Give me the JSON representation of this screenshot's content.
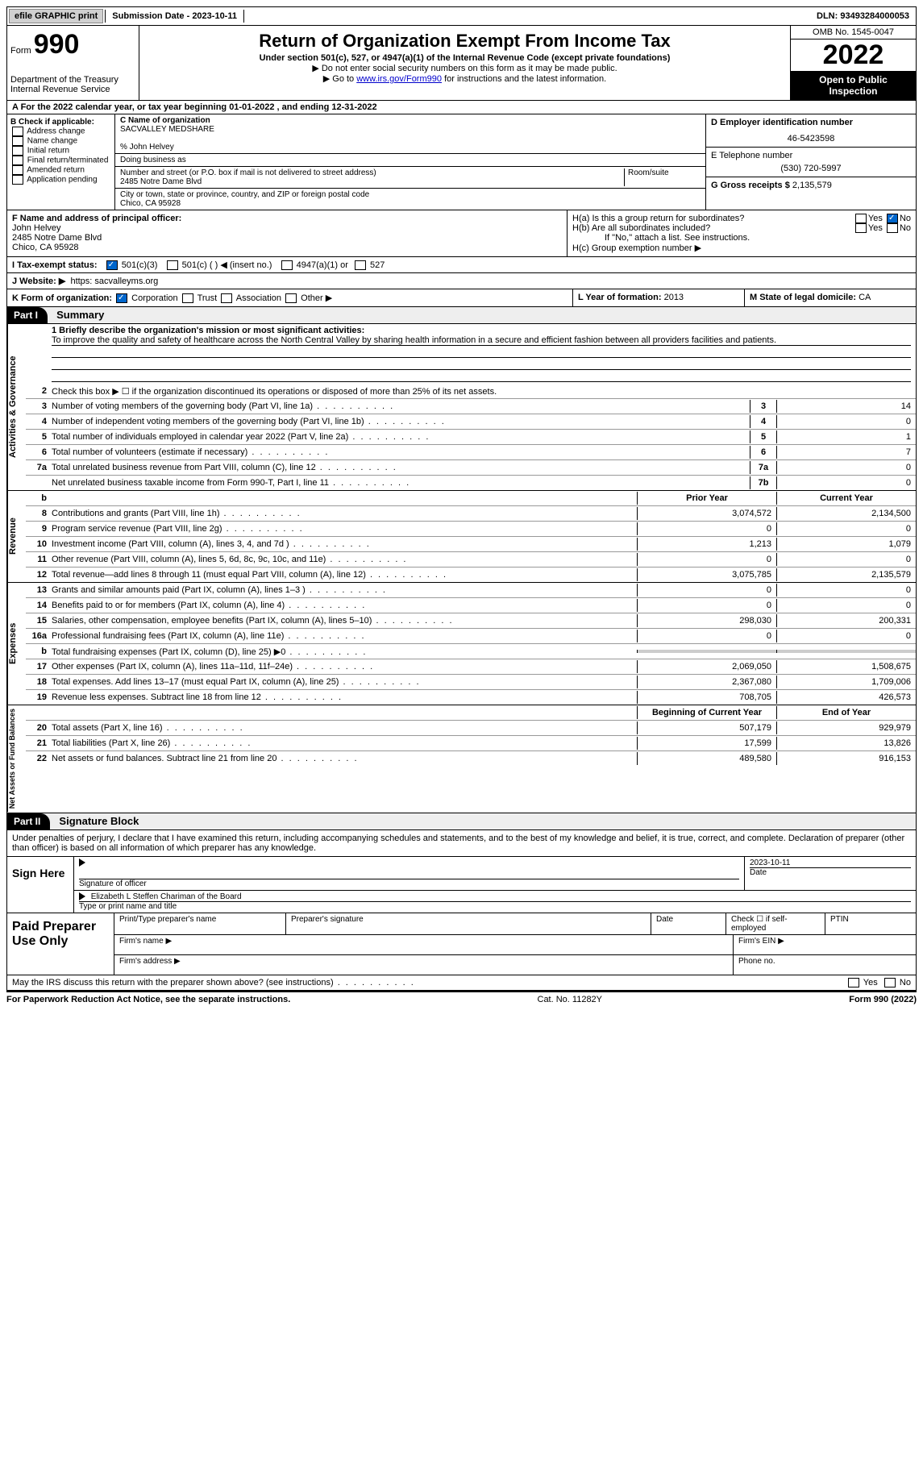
{
  "topbar": {
    "efile": "efile GRAPHIC print",
    "submission": "Submission Date - 2023-10-11",
    "dln": "DLN: 93493284000053"
  },
  "header": {
    "form_label": "Form",
    "form_num": "990",
    "dept": "Department of the Treasury",
    "irs": "Internal Revenue Service",
    "title": "Return of Organization Exempt From Income Tax",
    "sub1": "Under section 501(c), 527, or 4947(a)(1) of the Internal Revenue Code (except private foundations)",
    "sub2": "▶ Do not enter social security numbers on this form as it may be made public.",
    "sub3_pre": "▶ Go to ",
    "sub3_link": "www.irs.gov/Form990",
    "sub3_post": " for instructions and the latest information.",
    "omb": "OMB No. 1545-0047",
    "year": "2022",
    "inspect": "Open to Public Inspection"
  },
  "row_a": "A For the 2022 calendar year, or tax year beginning 01-01-2022    , and ending 12-31-2022",
  "col_b": {
    "hdr": "B Check if applicable:",
    "items": [
      "Address change",
      "Name change",
      "Initial return",
      "Final return/terminated",
      "Amended return",
      "Application pending"
    ]
  },
  "col_c": {
    "name_lbl": "C Name of organization",
    "name": "SACVALLEY MEDSHARE",
    "care": "% John Helvey",
    "dba": "Doing business as",
    "addr_lbl": "Number and street (or P.O. box if mail is not delivered to street address)",
    "addr": "2485 Notre Dame Blvd",
    "room_lbl": "Room/suite",
    "city_lbl": "City or town, state or province, country, and ZIP or foreign postal code",
    "city": "Chico, CA  95928"
  },
  "col_d": {
    "lbl": "D Employer identification number",
    "val": "46-5423598"
  },
  "col_e_phone": {
    "lbl": "E Telephone number",
    "val": "(530) 720-5997"
  },
  "col_g": {
    "lbl": "G Gross receipts $",
    "val": "2,135,579"
  },
  "col_f": {
    "lbl": "F  Name and address of principal officer:",
    "name": "John Helvey",
    "addr1": "2485 Notre Dame Blvd",
    "addr2": "Chico, CA  95928"
  },
  "col_h": {
    "a": "H(a)  Is this a group return for subordinates?",
    "b": "H(b)  Are all subordinates included?",
    "note": "If \"No,\" attach a list. See instructions.",
    "c": "H(c)  Group exemption number ▶"
  },
  "row_i": {
    "lbl": "I   Tax-exempt status:",
    "o1": "501(c)(3)",
    "o2": "501(c) (  ) ◀ (insert no.)",
    "o3": "4947(a)(1) or",
    "o4": "527"
  },
  "row_j": {
    "lbl": "J   Website: ▶",
    "val": "https: sacvalleyms.org"
  },
  "row_k": {
    "lbl": "K Form of organization:",
    "o1": "Corporation",
    "o2": "Trust",
    "o3": "Association",
    "o4": "Other ▶"
  },
  "row_l": {
    "lbl": "L Year of formation:",
    "val": "2013"
  },
  "row_m": {
    "lbl": "M State of legal domicile:",
    "val": "CA"
  },
  "part1": {
    "num": "Part I",
    "title": "Summary"
  },
  "mission": {
    "lbl": "1   Briefly describe the organization's mission or most significant activities:",
    "text": "To improve the quality and safety of healthcare across the North Central Valley by sharing health information in a secure and efficient fashion between all providers facilities and patients."
  },
  "line2": "Check this box ▶ ☐  if the organization discontinued its operations or disposed of more than 25% of its net assets.",
  "gov_lines": [
    {
      "n": "3",
      "d": "Number of voting members of the governing body (Part VI, line 1a)",
      "box": "3",
      "v": "14"
    },
    {
      "n": "4",
      "d": "Number of independent voting members of the governing body (Part VI, line 1b)",
      "box": "4",
      "v": "0"
    },
    {
      "n": "5",
      "d": "Total number of individuals employed in calendar year 2022 (Part V, line 2a)",
      "box": "5",
      "v": "1"
    },
    {
      "n": "6",
      "d": "Total number of volunteers (estimate if necessary)",
      "box": "6",
      "v": "7"
    },
    {
      "n": "7a",
      "d": "Total unrelated business revenue from Part VIII, column (C), line 12",
      "box": "7a",
      "v": "0"
    },
    {
      "n": "",
      "d": "Net unrelated business taxable income from Form 990-T, Part I, line 11",
      "box": "7b",
      "v": "0"
    }
  ],
  "col_hdrs": {
    "prior": "Prior Year",
    "current": "Current Year",
    "boy": "Beginning of Current Year",
    "eoy": "End of Year"
  },
  "rev_lines": [
    {
      "n": "8",
      "d": "Contributions and grants (Part VIII, line 1h)",
      "p": "3,074,572",
      "c": "2,134,500"
    },
    {
      "n": "9",
      "d": "Program service revenue (Part VIII, line 2g)",
      "p": "0",
      "c": "0"
    },
    {
      "n": "10",
      "d": "Investment income (Part VIII, column (A), lines 3, 4, and 7d )",
      "p": "1,213",
      "c": "1,079"
    },
    {
      "n": "11",
      "d": "Other revenue (Part VIII, column (A), lines 5, 6d, 8c, 9c, 10c, and 11e)",
      "p": "0",
      "c": "0"
    },
    {
      "n": "12",
      "d": "Total revenue—add lines 8 through 11 (must equal Part VIII, column (A), line 12)",
      "p": "3,075,785",
      "c": "2,135,579"
    }
  ],
  "exp_lines": [
    {
      "n": "13",
      "d": "Grants and similar amounts paid (Part IX, column (A), lines 1–3 )",
      "p": "0",
      "c": "0"
    },
    {
      "n": "14",
      "d": "Benefits paid to or for members (Part IX, column (A), line 4)",
      "p": "0",
      "c": "0"
    },
    {
      "n": "15",
      "d": "Salaries, other compensation, employee benefits (Part IX, column (A), lines 5–10)",
      "p": "298,030",
      "c": "200,331"
    },
    {
      "n": "16a",
      "d": "Professional fundraising fees (Part IX, column (A), line 11e)",
      "p": "0",
      "c": "0"
    },
    {
      "n": "b",
      "d": "Total fundraising expenses (Part IX, column (D), line 25) ▶0",
      "p": "",
      "c": "",
      "shade": true
    },
    {
      "n": "17",
      "d": "Other expenses (Part IX, column (A), lines 11a–11d, 11f–24e)",
      "p": "2,069,050",
      "c": "1,508,675"
    },
    {
      "n": "18",
      "d": "Total expenses. Add lines 13–17 (must equal Part IX, column (A), line 25)",
      "p": "2,367,080",
      "c": "1,709,006"
    },
    {
      "n": "19",
      "d": "Revenue less expenses. Subtract line 18 from line 12",
      "p": "708,705",
      "c": "426,573"
    }
  ],
  "net_lines": [
    {
      "n": "20",
      "d": "Total assets (Part X, line 16)",
      "p": "507,179",
      "c": "929,979"
    },
    {
      "n": "21",
      "d": "Total liabilities (Part X, line 26)",
      "p": "17,599",
      "c": "13,826"
    },
    {
      "n": "22",
      "d": "Net assets or fund balances. Subtract line 21 from line 20",
      "p": "489,580",
      "c": "916,153"
    }
  ],
  "vtabs": {
    "gov": "Activities & Governance",
    "rev": "Revenue",
    "exp": "Expenses",
    "net": "Net Assets or Fund Balances"
  },
  "part2": {
    "num": "Part II",
    "title": "Signature Block"
  },
  "decl": "Under penalties of perjury, I declare that I have examined this return, including accompanying schedules and statements, and to the best of my knowledge and belief, it is true, correct, and complete. Declaration of preparer (other than officer) is based on all information of which preparer has any knowledge.",
  "sign": {
    "here": "Sign Here",
    "sig_lbl": "Signature of officer",
    "date_lbl": "Date",
    "date": "2023-10-11",
    "name": "Elizabeth L Steffen  Chariman of the Board",
    "name_lbl": "Type or print name and title"
  },
  "prep": {
    "title": "Paid Preparer Use Only",
    "c1": "Print/Type preparer's name",
    "c2": "Preparer's signature",
    "c3": "Date",
    "c4": "Check ☐ if self-employed",
    "c5": "PTIN",
    "firm": "Firm's name   ▶",
    "ein": "Firm's EIN ▶",
    "addr": "Firm's address ▶",
    "phone": "Phone no."
  },
  "discuss": "May the IRS discuss this return with the preparer shown above? (see instructions)",
  "footer": {
    "l": "For Paperwork Reduction Act Notice, see the separate instructions.",
    "m": "Cat. No. 11282Y",
    "r": "Form 990 (2022)"
  }
}
